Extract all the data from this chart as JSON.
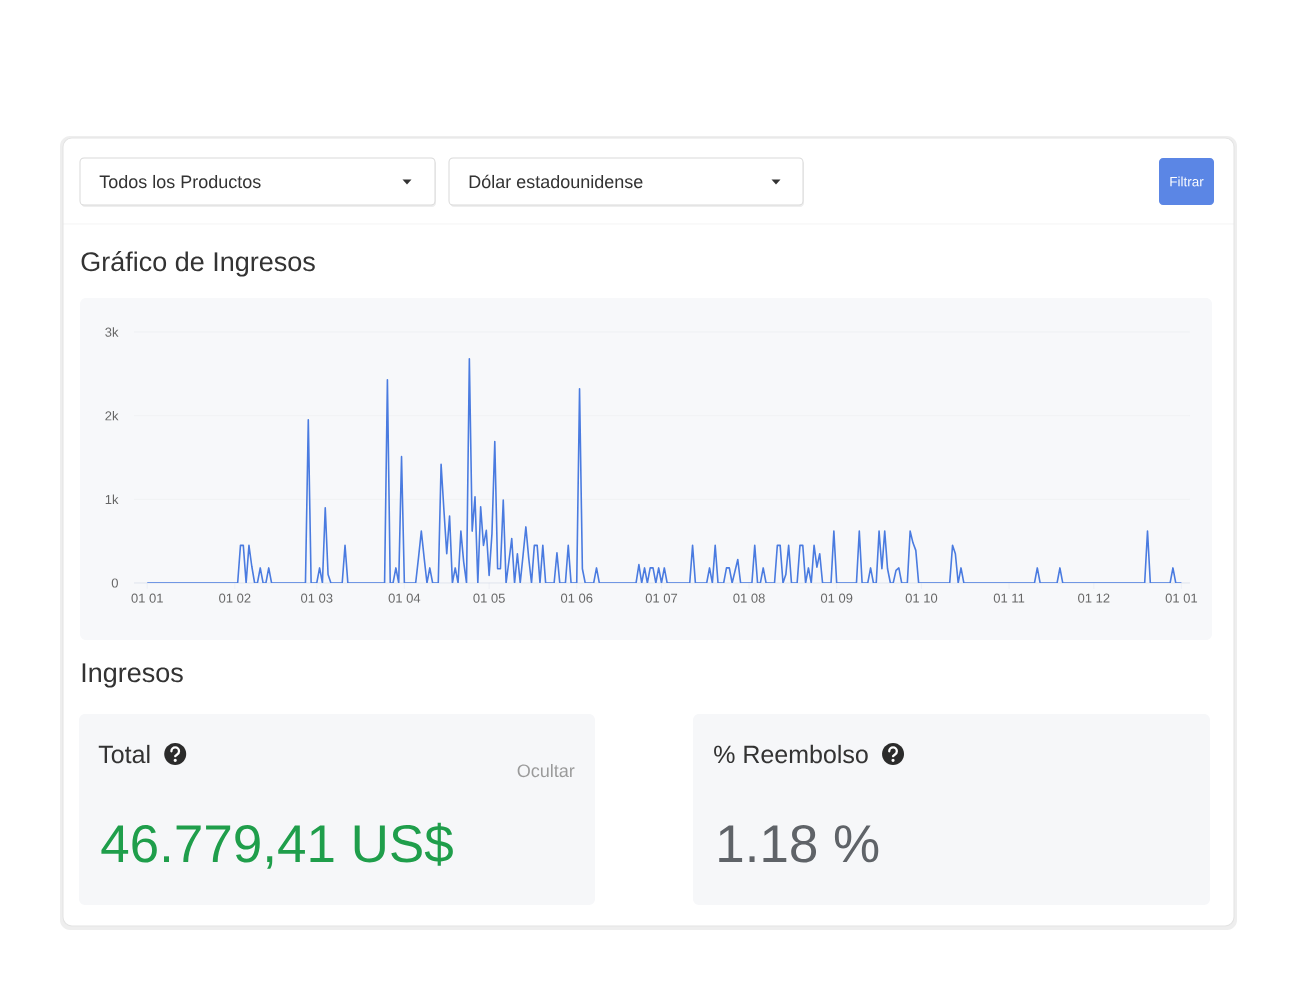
{
  "chart_data": [
    {
      "type": "other",
      "annotations": [
        "Todos los Productos",
        "Dólar estadounidense",
        "Filtrar"
      ]
    },
    {
      "type": "line",
      "title": "Gráfico de Ingresos",
      "categories": [
        "01 01",
        null,
        null,
        null,
        null,
        null,
        null,
        null,
        null,
        null,
        null,
        null,
        null,
        null,
        null,
        null,
        null,
        null,
        null,
        null,
        null,
        null,
        null,
        null,
        null,
        null,
        null,
        null,
        null,
        null,
        null,
        "01 02",
        null,
        null,
        null,
        null,
        null,
        null,
        null,
        null,
        null,
        null,
        null,
        null,
        null,
        null,
        null,
        null,
        null,
        null,
        null,
        null,
        null,
        null,
        null,
        null,
        null,
        null,
        null,
        null,
        "01 03",
        null,
        null,
        null,
        null,
        null,
        null,
        null,
        null,
        null,
        null,
        null,
        null,
        null,
        null,
        null,
        null,
        null,
        null,
        null,
        null,
        null,
        null,
        null,
        null,
        null,
        null,
        null,
        null,
        null,
        null,
        "01 04",
        null,
        null,
        null,
        null,
        null,
        null,
        null,
        null,
        null,
        null,
        null,
        null,
        null,
        null,
        null,
        null,
        null,
        null,
        null,
        null,
        null,
        null,
        null,
        null,
        null,
        null,
        null,
        null,
        null,
        "01 05",
        null,
        null,
        null,
        null,
        null,
        null,
        null,
        null,
        null,
        null,
        null,
        null,
        null,
        null,
        null,
        null,
        null,
        null,
        null,
        null,
        null,
        null,
        null,
        null,
        null,
        null,
        null,
        null,
        null,
        null,
        "01 06",
        null,
        null,
        null,
        null,
        null,
        null,
        null,
        null,
        null,
        null,
        null,
        null,
        null,
        null,
        null,
        null,
        null,
        null,
        null,
        null,
        null,
        null,
        null,
        null,
        null,
        null,
        null,
        null,
        null,
        "01 07",
        null,
        null,
        null,
        null,
        null,
        null,
        null,
        null,
        null,
        null,
        null,
        null,
        null,
        null,
        null,
        null,
        null,
        null,
        null,
        null,
        null,
        null,
        null,
        null,
        null,
        null,
        null,
        null,
        null,
        null,
        "01 08",
        null,
        null,
        null,
        null,
        null,
        null,
        null,
        null,
        null,
        null,
        null,
        null,
        null,
        null,
        null,
        null,
        null,
        null,
        null,
        null,
        null,
        null,
        null,
        null,
        null,
        null,
        null,
        null,
        null,
        null,
        "01 09",
        null,
        null,
        null,
        null,
        null,
        null,
        null,
        null,
        null,
        null,
        null,
        null,
        null,
        null,
        null,
        null,
        null,
        null,
        null,
        null,
        null,
        null,
        null,
        null,
        null,
        null,
        null,
        null,
        null,
        "01 10",
        null,
        null,
        null,
        null,
        null,
        null,
        null,
        null,
        null,
        null,
        null,
        null,
        null,
        null,
        null,
        null,
        null,
        null,
        null,
        null,
        null,
        null,
        null,
        null,
        null,
        null,
        null,
        null,
        null,
        null,
        "01 11",
        null,
        null,
        null,
        null,
        null,
        null,
        null,
        null,
        null,
        null,
        null,
        null,
        null,
        null,
        null,
        null,
        null,
        null,
        null,
        null,
        null,
        null,
        null,
        null,
        null,
        null,
        null,
        null,
        null,
        "01 12",
        null,
        null,
        null,
        null,
        null,
        null,
        null,
        null,
        null,
        null,
        null,
        null,
        null,
        null,
        null,
        null,
        null,
        null,
        null,
        null,
        null,
        null,
        null,
        null,
        null,
        null,
        null,
        null,
        null,
        null,
        "01 01"
      ],
      "values": [
        0,
        0,
        0,
        0,
        0,
        0,
        0,
        0,
        0,
        0,
        0,
        0,
        0,
        0,
        0,
        0,
        0,
        0,
        0,
        0,
        0,
        0,
        0,
        0,
        0,
        0,
        0,
        0,
        0,
        0,
        0,
        0,
        0,
        450,
        450,
        0,
        450,
        200,
        0,
        0,
        180,
        0,
        0,
        180,
        0,
        0,
        0,
        0,
        0,
        0,
        0,
        0,
        0,
        0,
        0,
        0,
        0,
        1950,
        0,
        0,
        0,
        180,
        0,
        900,
        100,
        0,
        0,
        0,
        0,
        0,
        450,
        0,
        0,
        0,
        0,
        0,
        0,
        0,
        0,
        0,
        0,
        0,
        0,
        0,
        0,
        2430,
        0,
        0,
        180,
        0,
        1510,
        0,
        0,
        0,
        0,
        0,
        300,
        620,
        300,
        0,
        180,
        0,
        0,
        0,
        1420,
        870,
        350,
        800,
        0,
        180,
        0,
        620,
        250,
        0,
        2680,
        620,
        1030,
        0,
        910,
        450,
        630,
        90,
        590,
        1690,
        170,
        170,
        990,
        0,
        260,
        530,
        0,
        350,
        0,
        330,
        670,
        300,
        0,
        450,
        450,
        0,
        450,
        0,
        0,
        0,
        0,
        360,
        0,
        0,
        0,
        450,
        0,
        0,
        0,
        2320,
        170,
        0,
        0,
        0,
        0,
        180,
        0,
        0,
        0,
        0,
        0,
        0,
        0,
        0,
        0,
        0,
        0,
        0,
        0,
        0,
        220,
        0,
        180,
        0,
        180,
        180,
        0,
        180,
        0,
        180,
        0,
        0,
        0,
        0,
        0,
        0,
        0,
        0,
        0,
        450,
        0,
        0,
        0,
        0,
        0,
        180,
        0,
        450,
        0,
        0,
        0,
        180,
        180,
        0,
        140,
        280,
        0,
        0,
        0,
        0,
        0,
        450,
        0,
        0,
        180,
        0,
        0,
        0,
        0,
        450,
        450,
        0,
        100,
        450,
        0,
        0,
        0,
        450,
        450,
        0,
        180,
        0,
        450,
        190,
        350,
        0,
        0,
        0,
        0,
        620,
        0,
        0,
        0,
        0,
        0,
        0,
        0,
        0,
        620,
        0,
        0,
        0,
        180,
        0,
        0,
        620,
        170,
        620,
        170,
        0,
        0,
        150,
        180,
        0,
        0,
        0,
        620,
        480,
        390,
        0,
        0,
        0,
        0,
        0,
        0,
        0,
        0,
        0,
        0,
        0,
        0,
        450,
        350,
        0,
        180,
        0,
        0,
        0,
        0,
        0,
        0,
        0,
        0,
        0,
        0,
        0,
        0,
        0,
        0,
        0,
        0,
        0,
        0,
        0,
        0,
        0,
        0,
        0,
        0,
        0,
        0,
        180,
        0,
        0,
        0,
        0,
        0,
        0,
        0,
        180,
        0,
        0,
        0,
        0,
        0,
        0,
        0,
        0,
        0,
        0,
        0,
        0,
        0,
        0,
        0,
        0,
        0,
        0,
        0,
        0,
        0,
        0,
        0,
        0,
        0,
        0,
        0,
        0,
        0,
        0,
        620,
        0,
        0,
        0,
        0,
        0,
        0,
        0,
        0,
        180,
        0,
        0,
        0
      ],
      "color": "#4a7be0",
      "ylim": [
        0,
        3000
      ],
      "yticks": [
        0,
        {
          "value": 1000,
          "label": "1k"
        },
        {
          "value": 2000,
          "label": "2k"
        },
        {
          "value": 3000,
          "label": "3k"
        }
      ],
      "grid": "y"
    },
    {
      "type": "other",
      "title": "Ingresos",
      "annotations": [
        "Total",
        "Ocultar",
        "46.779,41 US$",
        "% Reembolso",
        "1.18 %"
      ]
    }
  ]
}
